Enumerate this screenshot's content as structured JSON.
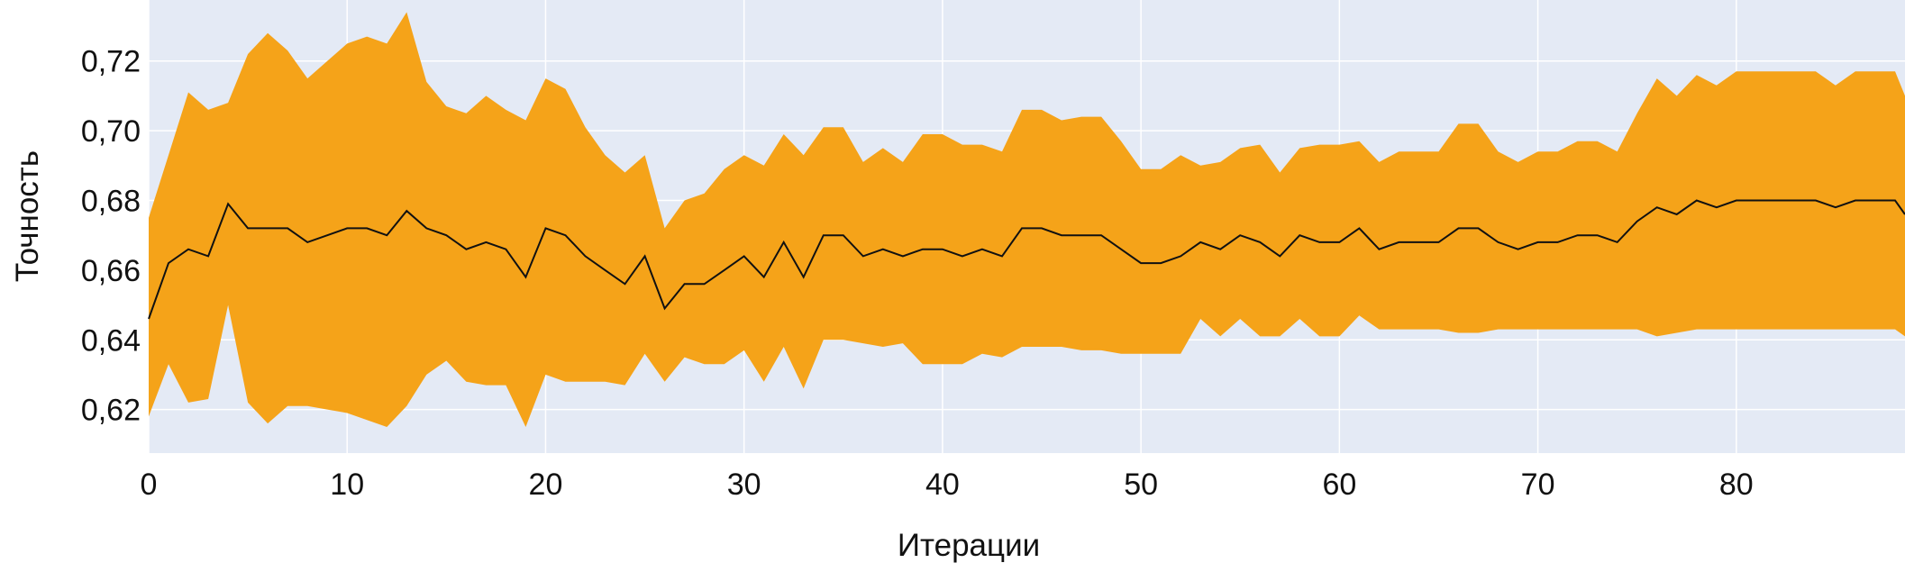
{
  "chart_data": {
    "type": "area",
    "title": "",
    "xlabel": "Итерации",
    "ylabel": "Точность",
    "xlim": [
      0,
      88.5
    ],
    "ylim": [
      0.6075,
      0.7375
    ],
    "grid": true,
    "legend": "none",
    "colors": {
      "background": "#E4EAF5",
      "band": "#F5A319",
      "line": "#111111",
      "grid": "#FFFFFF",
      "text": "#111111"
    },
    "x_ticks": [
      {
        "value": 0,
        "label": "0"
      },
      {
        "value": 10,
        "label": "10"
      },
      {
        "value": 20,
        "label": "20"
      },
      {
        "value": 30,
        "label": "30"
      },
      {
        "value": 40,
        "label": "40"
      },
      {
        "value": 50,
        "label": "50"
      },
      {
        "value": 60,
        "label": "60"
      },
      {
        "value": 70,
        "label": "70"
      },
      {
        "value": 80,
        "label": "80"
      }
    ],
    "y_ticks": [
      {
        "value": 0.62,
        "label": "0,62"
      },
      {
        "value": 0.64,
        "label": "0,64"
      },
      {
        "value": 0.66,
        "label": "0,66"
      },
      {
        "value": 0.68,
        "label": "0,68"
      },
      {
        "value": 0.7,
        "label": "0,70"
      },
      {
        "value": 0.72,
        "label": "0,72"
      }
    ],
    "x": [
      0,
      1,
      2,
      3,
      4,
      5,
      6,
      7,
      8,
      9,
      10,
      11,
      12,
      13,
      14,
      15,
      16,
      17,
      18,
      19,
      20,
      21,
      22,
      23,
      24,
      25,
      26,
      27,
      28,
      29,
      30,
      31,
      32,
      33,
      34,
      35,
      36,
      37,
      38,
      39,
      40,
      41,
      42,
      43,
      44,
      45,
      46,
      47,
      48,
      49,
      50,
      51,
      52,
      53,
      54,
      55,
      56,
      57,
      58,
      59,
      60,
      61,
      62,
      63,
      64,
      65,
      66,
      67,
      68,
      69,
      70,
      71,
      72,
      73,
      74,
      75,
      76,
      77,
      78,
      79,
      80,
      81,
      82,
      83,
      84,
      85,
      86,
      87,
      88,
      88.5
    ],
    "series": [
      {
        "role": "upper",
        "values": [
          0.675,
          0.693,
          0.711,
          0.706,
          0.708,
          0.722,
          0.728,
          0.723,
          0.715,
          0.72,
          0.725,
          0.727,
          0.725,
          0.734,
          0.714,
          0.707,
          0.705,
          0.71,
          0.706,
          0.703,
          0.715,
          0.712,
          0.701,
          0.693,
          0.688,
          0.693,
          0.672,
          0.68,
          0.682,
          0.689,
          0.693,
          0.69,
          0.699,
          0.693,
          0.701,
          0.701,
          0.691,
          0.695,
          0.691,
          0.699,
          0.699,
          0.696,
          0.696,
          0.694,
          0.706,
          0.706,
          0.703,
          0.704,
          0.704,
          0.697,
          0.689,
          0.689,
          0.693,
          0.69,
          0.691,
          0.695,
          0.696,
          0.688,
          0.695,
          0.696,
          0.696,
          0.697,
          0.691,
          0.694,
          0.694,
          0.694,
          0.702,
          0.702,
          0.694,
          0.691,
          0.694,
          0.694,
          0.697,
          0.697,
          0.694,
          0.705,
          0.715,
          0.71,
          0.716,
          0.713,
          0.717,
          0.717,
          0.717,
          0.717,
          0.717,
          0.713,
          0.717,
          0.717,
          0.717,
          0.71
        ]
      },
      {
        "role": "mean",
        "values": [
          0.646,
          0.662,
          0.666,
          0.664,
          0.679,
          0.672,
          0.672,
          0.672,
          0.668,
          0.67,
          0.672,
          0.672,
          0.67,
          0.677,
          0.672,
          0.67,
          0.666,
          0.668,
          0.666,
          0.658,
          0.672,
          0.67,
          0.664,
          0.66,
          0.656,
          0.664,
          0.649,
          0.656,
          0.656,
          0.66,
          0.664,
          0.658,
          0.668,
          0.658,
          0.67,
          0.67,
          0.664,
          0.666,
          0.664,
          0.666,
          0.666,
          0.664,
          0.666,
          0.664,
          0.672,
          0.672,
          0.67,
          0.67,
          0.67,
          0.666,
          0.662,
          0.662,
          0.664,
          0.668,
          0.666,
          0.67,
          0.668,
          0.664,
          0.67,
          0.668,
          0.668,
          0.672,
          0.666,
          0.668,
          0.668,
          0.668,
          0.672,
          0.672,
          0.668,
          0.666,
          0.668,
          0.668,
          0.67,
          0.67,
          0.668,
          0.674,
          0.678,
          0.676,
          0.68,
          0.678,
          0.68,
          0.68,
          0.68,
          0.68,
          0.68,
          0.678,
          0.68,
          0.68,
          0.68,
          0.676
        ]
      },
      {
        "role": "lower",
        "values": [
          0.618,
          0.633,
          0.622,
          0.623,
          0.65,
          0.622,
          0.616,
          0.621,
          0.621,
          0.62,
          0.619,
          0.617,
          0.615,
          0.621,
          0.63,
          0.634,
          0.628,
          0.627,
          0.627,
          0.615,
          0.63,
          0.628,
          0.628,
          0.628,
          0.627,
          0.636,
          0.628,
          0.635,
          0.633,
          0.633,
          0.637,
          0.628,
          0.638,
          0.626,
          0.64,
          0.64,
          0.639,
          0.638,
          0.639,
          0.633,
          0.633,
          0.633,
          0.636,
          0.635,
          0.638,
          0.638,
          0.638,
          0.637,
          0.637,
          0.636,
          0.636,
          0.636,
          0.636,
          0.646,
          0.641,
          0.646,
          0.641,
          0.641,
          0.646,
          0.641,
          0.641,
          0.647,
          0.643,
          0.643,
          0.643,
          0.643,
          0.642,
          0.642,
          0.643,
          0.643,
          0.643,
          0.643,
          0.643,
          0.643,
          0.643,
          0.643,
          0.641,
          0.642,
          0.643,
          0.643,
          0.643,
          0.643,
          0.643,
          0.643,
          0.643,
          0.643,
          0.643,
          0.643,
          0.643,
          0.641
        ]
      }
    ]
  }
}
